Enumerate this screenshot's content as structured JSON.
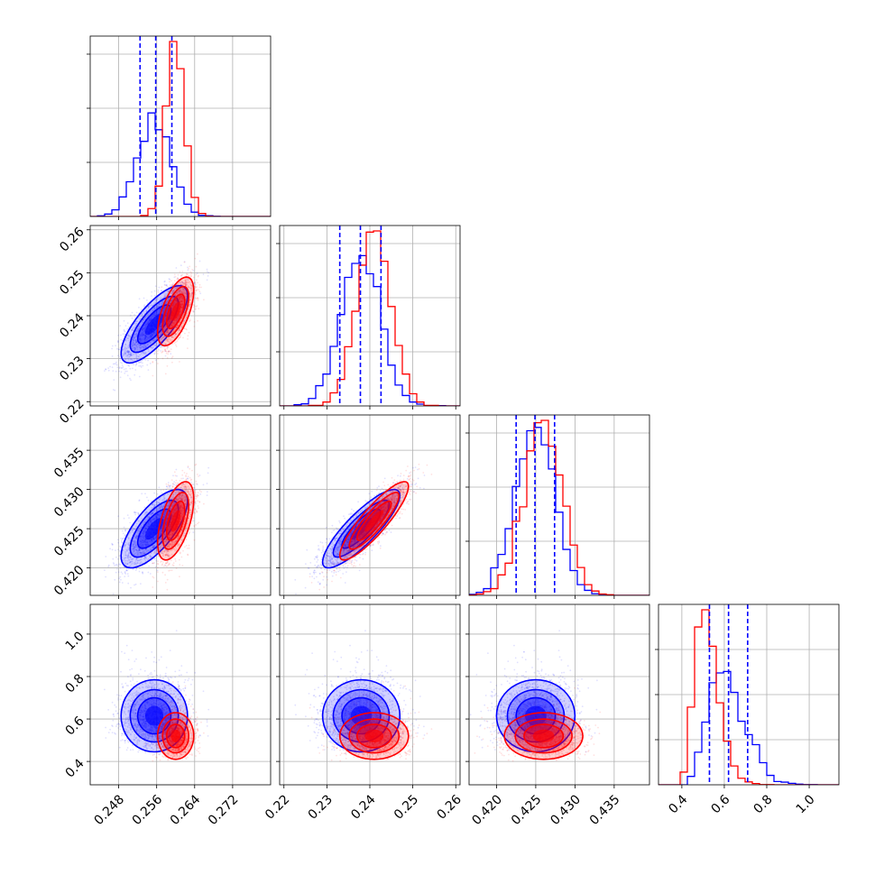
{
  "chart_data": {
    "type": "corner",
    "title": "",
    "grid": true,
    "colors": {
      "blue": "#0000ff",
      "red": "#ff0000"
    },
    "series": [
      {
        "name": "",
        "color": "#0000ff",
        "means": [
          0.2555,
          0.238,
          0.425,
          0.615
        ],
        "sigmas": [
          0.0035,
          0.0045,
          0.0025,
          0.085
        ],
        "quantiles": [
          [
            0.2525,
            0.2558,
            0.2592
          ],
          [
            0.233,
            0.2378,
            0.2426
          ],
          [
            0.4225,
            0.4249,
            0.4274
          ],
          [
            0.53,
            0.62,
            0.71
          ]
        ],
        "correlations": [
          [
            0,
            1,
            0.75
          ],
          [
            0,
            2,
            0.7
          ],
          [
            1,
            2,
            0.85
          ]
        ]
      },
      {
        "name": "",
        "color": "#ff0000",
        "means": [
          0.26,
          0.241,
          0.426,
          0.52
        ],
        "sigmas": [
          0.0019,
          0.004,
          0.0025,
          0.055
        ],
        "correlations": [
          [
            0,
            1,
            0.6
          ],
          [
            0,
            2,
            0.55
          ],
          [
            1,
            2,
            0.88
          ]
        ]
      }
    ],
    "params": [
      {
        "xlim": [
          0.242,
          0.28
        ],
        "ticks": [
          0.248,
          0.256,
          0.264,
          0.272
        ],
        "tick_labels": [
          "0.248",
          "0.256",
          "0.264",
          "0.272"
        ]
      },
      {
        "xlim": [
          0.219,
          0.261
        ],
        "ticks": [
          0.22,
          0.23,
          0.24,
          0.25,
          0.26
        ],
        "tick_labels": [
          "0.22",
          "0.23",
          "0.24",
          "0.25",
          "0.26"
        ]
      },
      {
        "xlim": [
          0.4165,
          0.4395
        ],
        "ticks": [
          0.42,
          0.425,
          0.43,
          0.435
        ],
        "tick_labels": [
          "0.420",
          "0.425",
          "0.430",
          "0.435"
        ]
      },
      {
        "xlim": [
          0.29,
          1.14
        ],
        "ticks": [
          0.4,
          0.6,
          0.8,
          1.0
        ],
        "tick_labels": [
          "0.4",
          "0.6",
          "0.8",
          "1.0"
        ]
      }
    ],
    "y_axes": [
      {
        "row": 1,
        "ylim": [
          0.219,
          0.261
        ],
        "ticks": [
          0.22,
          0.23,
          0.24,
          0.25,
          0.26
        ],
        "tick_labels": [
          "0.22",
          "0.23",
          "0.24",
          "0.25",
          "0.26"
        ]
      },
      {
        "row": 2,
        "ylim": [
          0.4165,
          0.4395
        ],
        "ticks": [
          0.42,
          0.425,
          0.43,
          0.435
        ],
        "tick_labels": [
          "0.420",
          "0.425",
          "0.430",
          "0.435"
        ]
      },
      {
        "row": 3,
        "ylim": [
          0.29,
          1.14
        ],
        "ticks": [
          0.4,
          0.6,
          0.8,
          1.0
        ],
        "tick_labels": [
          "0.4",
          "0.6",
          "0.8",
          "1.0"
        ]
      }
    ]
  }
}
